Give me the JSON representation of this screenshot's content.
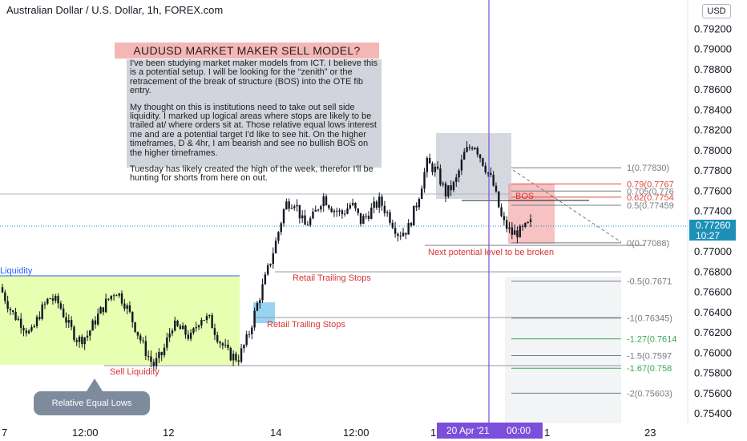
{
  "header": {
    "title": "Australian Dollar / U.S. Dollar, 1h, FOREX.com"
  },
  "currency_badge": "USD",
  "note": {
    "title": "AUDUSD MARKET MAKER SELL MODEL?",
    "paragraphs": [
      "I've been studying market maker models from ICT. I believe this is a potential setup. I will be looking for the “zenith” or the retracement of the break of structure (BOS) into the OTE fib entry.",
      "My thought on this is institutions need to take out sell side liquidity. I marked up logical areas where stops are likely to be trailed at/ where orders sit at. Those relative equal lows interest me and are a potential target I'd like to see hit. On the higher timeframes, D & 4hr, I am bearish and see no bullish BOS on the higher timeframes.",
      "Tuesday has likely created the high of the week, therefor I'll be hunting for shorts from here on out."
    ]
  },
  "callout": "Relative Equal Lows",
  "current_price": {
    "value": "0.77260",
    "countdown": "10:27"
  },
  "crosshair": {
    "date": "20 Apr '21",
    "time": "00:00"
  },
  "chart_data": {
    "type": "candlestick",
    "title": "Australian Dollar / U.S. Dollar, 1h, FOREX.com",
    "y_axis": {
      "ticks": [
        "0.79200",
        "0.79000",
        "0.78800",
        "0.78600",
        "0.78400",
        "0.78200",
        "0.78000",
        "0.77800",
        "0.77600",
        "0.77400",
        "0.77000",
        "0.76800",
        "0.76600",
        "0.76400",
        "0.76200",
        "0.76000",
        "0.75800",
        "0.75600",
        "0.75400"
      ],
      "range": [
        0.7532,
        0.7937
      ]
    },
    "x_axis": {
      "ticks": [
        "7",
        "12:00",
        "12",
        "14",
        "12:00",
        "1",
        "1",
        "23"
      ]
    },
    "price_path": [
      [
        0.7665,
        0.7655
      ],
      [
        0.765,
        0.763
      ],
      [
        0.764,
        0.762
      ],
      [
        0.7625,
        0.761
      ],
      [
        0.7635,
        0.7645
      ],
      [
        0.765,
        0.766
      ],
      [
        0.7655,
        0.7642
      ],
      [
        0.764,
        0.7615
      ],
      [
        0.762,
        0.7605
      ],
      [
        0.761,
        0.7625
      ],
      [
        0.763,
        0.764
      ],
      [
        0.7645,
        0.7655
      ],
      [
        0.766,
        0.7665
      ],
      [
        0.7658,
        0.764
      ],
      [
        0.7635,
        0.762
      ],
      [
        0.7615,
        0.7595
      ],
      [
        0.759,
        0.7585
      ],
      [
        0.759,
        0.761
      ],
      [
        0.762,
        0.7635
      ],
      [
        0.763,
        0.7615
      ],
      [
        0.761,
        0.762
      ],
      [
        0.763,
        0.7642
      ],
      [
        0.764,
        0.7625
      ],
      [
        0.762,
        0.7605
      ],
      [
        0.76,
        0.7597
      ],
      [
        0.76,
        0.7589
      ],
      [
        0.76,
        0.763
      ],
      [
        0.764,
        0.7655
      ],
      [
        0.7665,
        0.769
      ],
      [
        0.77,
        0.772
      ],
      [
        0.774,
        0.7755
      ],
      [
        0.776,
        0.774
      ],
      [
        0.773,
        0.772
      ],
      [
        0.7725,
        0.7745
      ],
      [
        0.775,
        0.776
      ],
      [
        0.775,
        0.7735
      ],
      [
        0.773,
        0.7745
      ],
      [
        0.7755,
        0.774
      ],
      [
        0.7735,
        0.7725
      ],
      [
        0.773,
        0.775
      ],
      [
        0.7755,
        0.7745
      ],
      [
        0.774,
        0.773
      ],
      [
        0.7725,
        0.771
      ],
      [
        0.7715,
        0.773
      ],
      [
        0.774,
        0.776
      ],
      [
        0.778,
        0.7795
      ],
      [
        0.779,
        0.777
      ],
      [
        0.776,
        0.7755
      ],
      [
        0.776,
        0.7775
      ],
      [
        0.779,
        0.7805
      ],
      [
        0.7815,
        0.78
      ],
      [
        0.7795,
        0.778
      ],
      [
        0.777,
        0.7765
      ],
      [
        0.774,
        0.772
      ],
      [
        0.7725,
        0.7711
      ],
      [
        0.7715,
        0.7725
      ],
      [
        0.773,
        0.7726
      ]
    ],
    "fibonacci": [
      {
        "level": "1",
        "value": 0.7783,
        "label": "1(0.77830)",
        "color": "#787b86"
      },
      {
        "level": "0.79",
        "value": 0.7767,
        "label": "0.79(0.7767",
        "color": "#e0493f"
      },
      {
        "level": "0.705",
        "value": 0.776,
        "label": "0.705(0.776",
        "color": "#787b86"
      },
      {
        "level": "0.62",
        "value": 0.7754,
        "label": "0.62(0.7754",
        "color": "#e0493f"
      },
      {
        "level": "0.5",
        "value": 0.77459,
        "label": "0.5(0.77459",
        "color": "#787b86"
      },
      {
        "level": "0",
        "value": 0.77088,
        "label": "0(0.77088)",
        "color": "#787b86"
      },
      {
        "level": "-0.5",
        "value": 0.7671,
        "label": "-0.5(0.7671",
        "color": "#787b86"
      },
      {
        "level": "-1",
        "value": 0.76345,
        "label": "-1(0.76345)",
        "color": "#787b86"
      },
      {
        "level": "-1.27",
        "value": 0.7614,
        "label": "-1.27(0.7614",
        "color": "#3aa655"
      },
      {
        "level": "-1.5",
        "value": 0.75974,
        "label": "-1.5(0.7597",
        "color": "#787b86"
      },
      {
        "level": "-1.67",
        "value": 0.7585,
        "label": "-1.67(0.758",
        "color": "#3aa655"
      },
      {
        "level": "-2",
        "value": 0.75603,
        "label": "-2(0.75603)",
        "color": "#787b86"
      }
    ],
    "annotations": [
      {
        "id": "liquidity",
        "text": "Liquidity",
        "color": "#2962ff"
      },
      {
        "id": "sell_liquidity",
        "text": "Sell Liquidity",
        "color": "#d93434"
      },
      {
        "id": "retail_stops_1",
        "text": "Retail Trailing Stops",
        "color": "#d93434"
      },
      {
        "id": "retail_stops_2",
        "text": "Retail Trailing Stops",
        "color": "#d93434"
      },
      {
        "id": "next_level",
        "text": "Next potential level to be broken",
        "color": "#d93434"
      },
      {
        "id": "bos",
        "text": "BOS",
        "color": "#d93434"
      }
    ],
    "colors": {
      "up": "#131722",
      "down": "#131722",
      "liquidity_zone": "#e6ffb0",
      "retail_zone": "#7ec8ef",
      "zenith_zone": "#b2b8c4",
      "sell_zone": "#f09a9a",
      "crosshair": "#7b4fd9",
      "price_line": "#1e90b8"
    }
  }
}
